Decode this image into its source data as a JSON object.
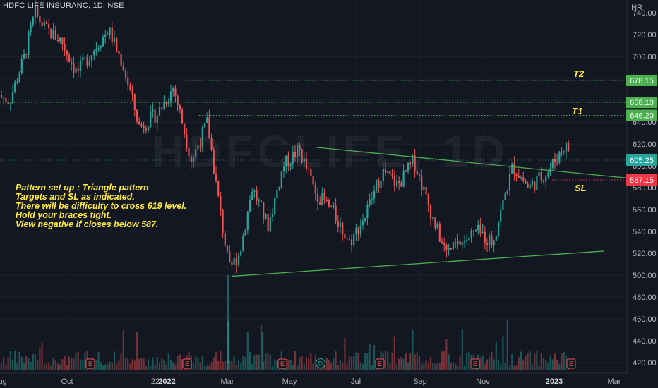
{
  "header": {
    "title": "HDFC LIFE INSURANC, 1D, NSE",
    "watermark": "HDFCLIFE, 1D"
  },
  "price_axis": {
    "currency": "INR"
  },
  "annotation": {
    "lines": [
      "Pattern set up : Triangle pattern",
      "Targets and SL as indicated.",
      "There will be difficulty to cross 619 level.",
      "Hold your braces tight.",
      "View negative if closes below 587."
    ]
  },
  "levels": {
    "t2": {
      "tag": "T2",
      "value": "678.15"
    },
    "t1": {
      "tag": "T1",
      "value": "646.20"
    },
    "mid": {
      "value": "658.10"
    },
    "sl": {
      "tag": "SL",
      "value": "587.15"
    },
    "last": {
      "value": "605.25"
    }
  },
  "colors": {
    "background": "#131722",
    "up": "#26a69a",
    "down": "#ef5350",
    "level_line": "#4caf50",
    "sl_line": "#f23645",
    "trendline": "#4caf50",
    "annotation": "#ffeb3b",
    "earnings_marker": "#ef5350",
    "dividend_marker": "#26a69a"
  },
  "chart_data": {
    "type": "candlestick",
    "symbol": "HDFC LIFE INSURANC",
    "interval": "1D",
    "exchange": "NSE",
    "x_tick_labels": [
      "Aug",
      "Oct",
      "22",
      "2022",
      "Mar",
      "May",
      "Jul",
      "Sep",
      "Nov",
      "2023",
      "Mar"
    ],
    "bold_x_ticks": [
      "2022",
      "2023"
    ],
    "y_ticks": [
      420,
      440,
      460,
      480,
      500,
      520,
      540,
      560,
      580,
      600,
      620,
      640,
      660,
      680,
      700,
      720,
      740
    ],
    "ylim": [
      413,
      744
    ],
    "horizontal_levels": [
      678.15,
      658.1,
      646.2,
      587.15
    ],
    "last_price": 605.25,
    "trendlines": [
      {
        "name": "upper",
        "from": [
          "2022-05",
          617
        ],
        "to": [
          "2023-03",
          589
        ]
      },
      {
        "name": "lower",
        "from": [
          "2022-03",
          499
        ],
        "to": [
          "2023-03",
          522
        ]
      }
    ],
    "price_path": [
      [
        "2021-08",
        665
      ],
      [
        "2021-08",
        660
      ],
      [
        "2021-09",
        700
      ],
      [
        "2021-09",
        740
      ],
      [
        "2021-09",
        725
      ],
      [
        "2021-10",
        715
      ],
      [
        "2021-10",
        685
      ],
      [
        "2021-11",
        705
      ],
      [
        "2021-11",
        725
      ],
      [
        "2021-12",
        690
      ],
      [
        "2021-12",
        635
      ],
      [
        "2022-01",
        648
      ],
      [
        "2022-01",
        672
      ],
      [
        "2022-02",
        605
      ],
      [
        "2022-02",
        640
      ],
      [
        "2022-03",
        568
      ],
      [
        "2022-03",
        505
      ],
      [
        "2022-03",
        520
      ],
      [
        "2022-04",
        580
      ],
      [
        "2022-04",
        545
      ],
      [
        "2022-05",
        600
      ],
      [
        "2022-05",
        615
      ],
      [
        "2022-06",
        575
      ],
      [
        "2022-06",
        560
      ],
      [
        "2022-07",
        530
      ],
      [
        "2022-07",
        555
      ],
      [
        "2022-08",
        595
      ],
      [
        "2022-08",
        582
      ],
      [
        "2022-09",
        605
      ],
      [
        "2022-09",
        560
      ],
      [
        "2022-10",
        520
      ],
      [
        "2022-10",
        530
      ],
      [
        "2022-11",
        540
      ],
      [
        "2022-11",
        530
      ],
      [
        "2022-12",
        600
      ],
      [
        "2022-12",
        580
      ],
      [
        "2023-01",
        595
      ],
      [
        "2023-01",
        618
      ],
      [
        "2023-02",
        605
      ]
    ],
    "event_markers": [
      {
        "type": "E",
        "date": "2021-10"
      },
      {
        "type": "E",
        "date": "2022-01"
      },
      {
        "type": "E",
        "date": "2022-04"
      },
      {
        "type": "D",
        "date": "2022-05"
      },
      {
        "type": "E",
        "date": "2022-07"
      },
      {
        "type": "E",
        "date": "2022-10"
      },
      {
        "type": "E",
        "date": "2023-01"
      }
    ]
  }
}
